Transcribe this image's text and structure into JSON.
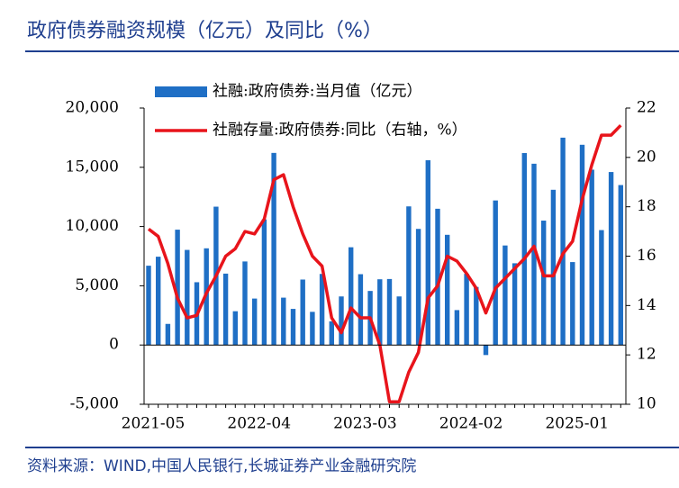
{
  "chart_data": {
    "type": "bar_line",
    "title": "政府债券融资规模（亿元）及同比（%）",
    "source": "资料来源：WIND,中国人民银行,长城证券产业金融研究院",
    "categories": [
      "2021-05",
      null,
      null,
      null,
      null,
      null,
      null,
      null,
      null,
      null,
      null,
      "2022-04",
      null,
      null,
      null,
      null,
      null,
      null,
      null,
      null,
      null,
      null,
      "2023-03",
      null,
      null,
      null,
      null,
      null,
      null,
      null,
      null,
      null,
      null,
      "2024-02",
      null,
      null,
      null,
      null,
      null,
      null,
      null,
      null,
      null,
      null,
      "2025-01",
      null,
      null,
      null,
      null,
      null
    ],
    "series": [
      {
        "name": "社融:政府债券:当月值（亿元）",
        "type": "bar",
        "color": "#1f6fc5",
        "axis": "y",
        "values": [
          6694,
          7454,
          1782,
          9735,
          8026,
          5300,
          8161,
          11676,
          6026,
          2851,
          7052,
          3921,
          10600,
          16213,
          3998,
          3048,
          5525,
          2800,
          6000,
          2000,
          4100,
          8251,
          5978,
          4563,
          5548,
          5571,
          4100,
          11700,
          9800,
          15600,
          11500,
          9300,
          2947,
          6011,
          4900,
          -846,
          12200,
          8400,
          6900,
          16200,
          15300,
          10500,
          13100,
          17500,
          7000,
          16900,
          14800,
          9700,
          14600,
          13500
        ]
      },
      {
        "name": "社融存量:政府债券:同比（右轴，%）",
        "type": "line",
        "color": "#e8141b",
        "axis": "y2",
        "values": [
          17.1,
          16.8,
          15.7,
          14.3,
          13.5,
          13.6,
          14.5,
          15.2,
          16.0,
          16.3,
          17.0,
          16.9,
          17.5,
          19.1,
          19.3,
          18.0,
          16.9,
          16.0,
          15.6,
          13.5,
          12.9,
          13.9,
          13.5,
          13.5,
          12.4,
          10.1,
          10.1,
          11.3,
          12.1,
          14.3,
          14.8,
          16.0,
          15.8,
          15.3,
          14.7,
          13.7,
          14.7,
          15.1,
          15.5,
          15.9,
          16.4,
          15.2,
          15.2,
          16.1,
          16.6,
          18.3,
          19.7,
          20.9,
          20.9,
          21.3
        ]
      }
    ],
    "ylim": [
      -5000,
      20000
    ],
    "yticks": [
      {
        "value": -5000,
        "label": "-5,000"
      },
      0,
      {
        "value": 5000,
        "label": "5,000"
      },
      {
        "value": 10000,
        "label": "10,000"
      },
      {
        "value": 15000,
        "label": "15,000"
      },
      {
        "value": 20000,
        "label": "20,000"
      }
    ],
    "y2lim": [
      10,
      22
    ],
    "y2ticks": [
      10,
      12,
      14,
      16,
      18,
      20,
      22
    ]
  }
}
